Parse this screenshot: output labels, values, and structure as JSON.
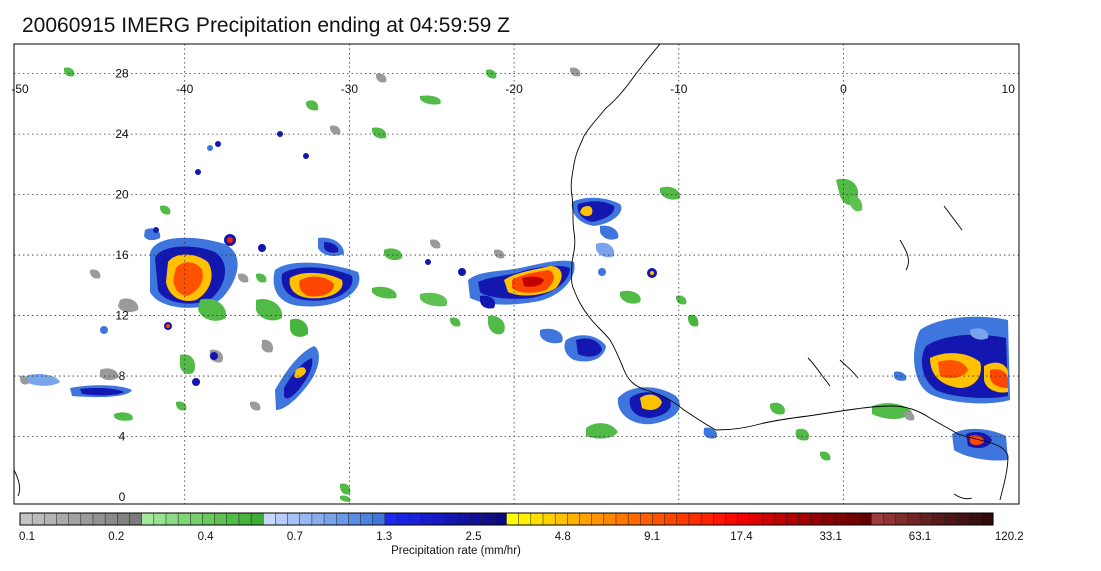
{
  "title": "20060915 IMERG Precipitation ending at 04:59:59 Z",
  "map": {
    "lon_range": [
      -50,
      10
    ],
    "lat_range": [
      -0.5,
      30
    ],
    "lon_ticks": [
      "-50",
      "-40",
      "-30",
      "-20",
      "-10",
      "0",
      "10"
    ],
    "lat_ticks": [
      "28",
      "24",
      "20",
      "16",
      "12",
      "8",
      "4",
      "0"
    ],
    "gridlines": "dotted",
    "coastline_color": "#000000"
  },
  "colorbar": {
    "label": "Precipitation rate (mm/hr)",
    "tick_labels": [
      "0.1",
      "0.2",
      "0.4",
      "0.7",
      "1.3",
      "2.5",
      "4.8",
      "9.1",
      "17.4",
      "33.1",
      "63.1",
      "120.2"
    ],
    "colors": [
      "#c4c4c4",
      "#bbbbbb",
      "#b3b3b3",
      "#aaaaaa",
      "#a2a2a2",
      "#9a9a9a",
      "#929292",
      "#8a8a8a",
      "#828282",
      "#7b7b7b",
      "#a6e8a0",
      "#99e292",
      "#8ddc85",
      "#81d678",
      "#75d06b",
      "#69c95e",
      "#5dc252",
      "#52bb47",
      "#48b43d",
      "#3ead35",
      "#c6d8fb",
      "#b7ccfa",
      "#a8c2f7",
      "#98b8f4",
      "#88aef0",
      "#79a4ec",
      "#6a98e9",
      "#5b8de5",
      "#4c82e2",
      "#3e76de",
      "#1e28f0",
      "#1c24e3",
      "#1a21d6",
      "#181dc9",
      "#1619bd",
      "#1416b0",
      "#1213a4",
      "#101098",
      "#0e0d8c",
      "#0b0a80",
      "#ffff00",
      "#ffef00",
      "#ffe000",
      "#ffd100",
      "#ffc100",
      "#ffb200",
      "#ffa300",
      "#ff9400",
      "#ff8500",
      "#ff7600",
      "#ff6a00",
      "#ff5e00",
      "#ff5200",
      "#ff4600",
      "#ff3a00",
      "#ff2e00",
      "#ff2200",
      "#ff1600",
      "#fa0a00",
      "#f20000",
      "#e00000",
      "#d10000",
      "#c20000",
      "#b40000",
      "#a60000",
      "#980000",
      "#8b0000",
      "#7e0000",
      "#720000",
      "#660000",
      "#9c3c3c",
      "#8e3434",
      "#802c2c",
      "#732525",
      "#671f1f",
      "#5b1a1a",
      "#501515",
      "#461111",
      "#3c0d0d",
      "#330a0a"
    ]
  }
}
